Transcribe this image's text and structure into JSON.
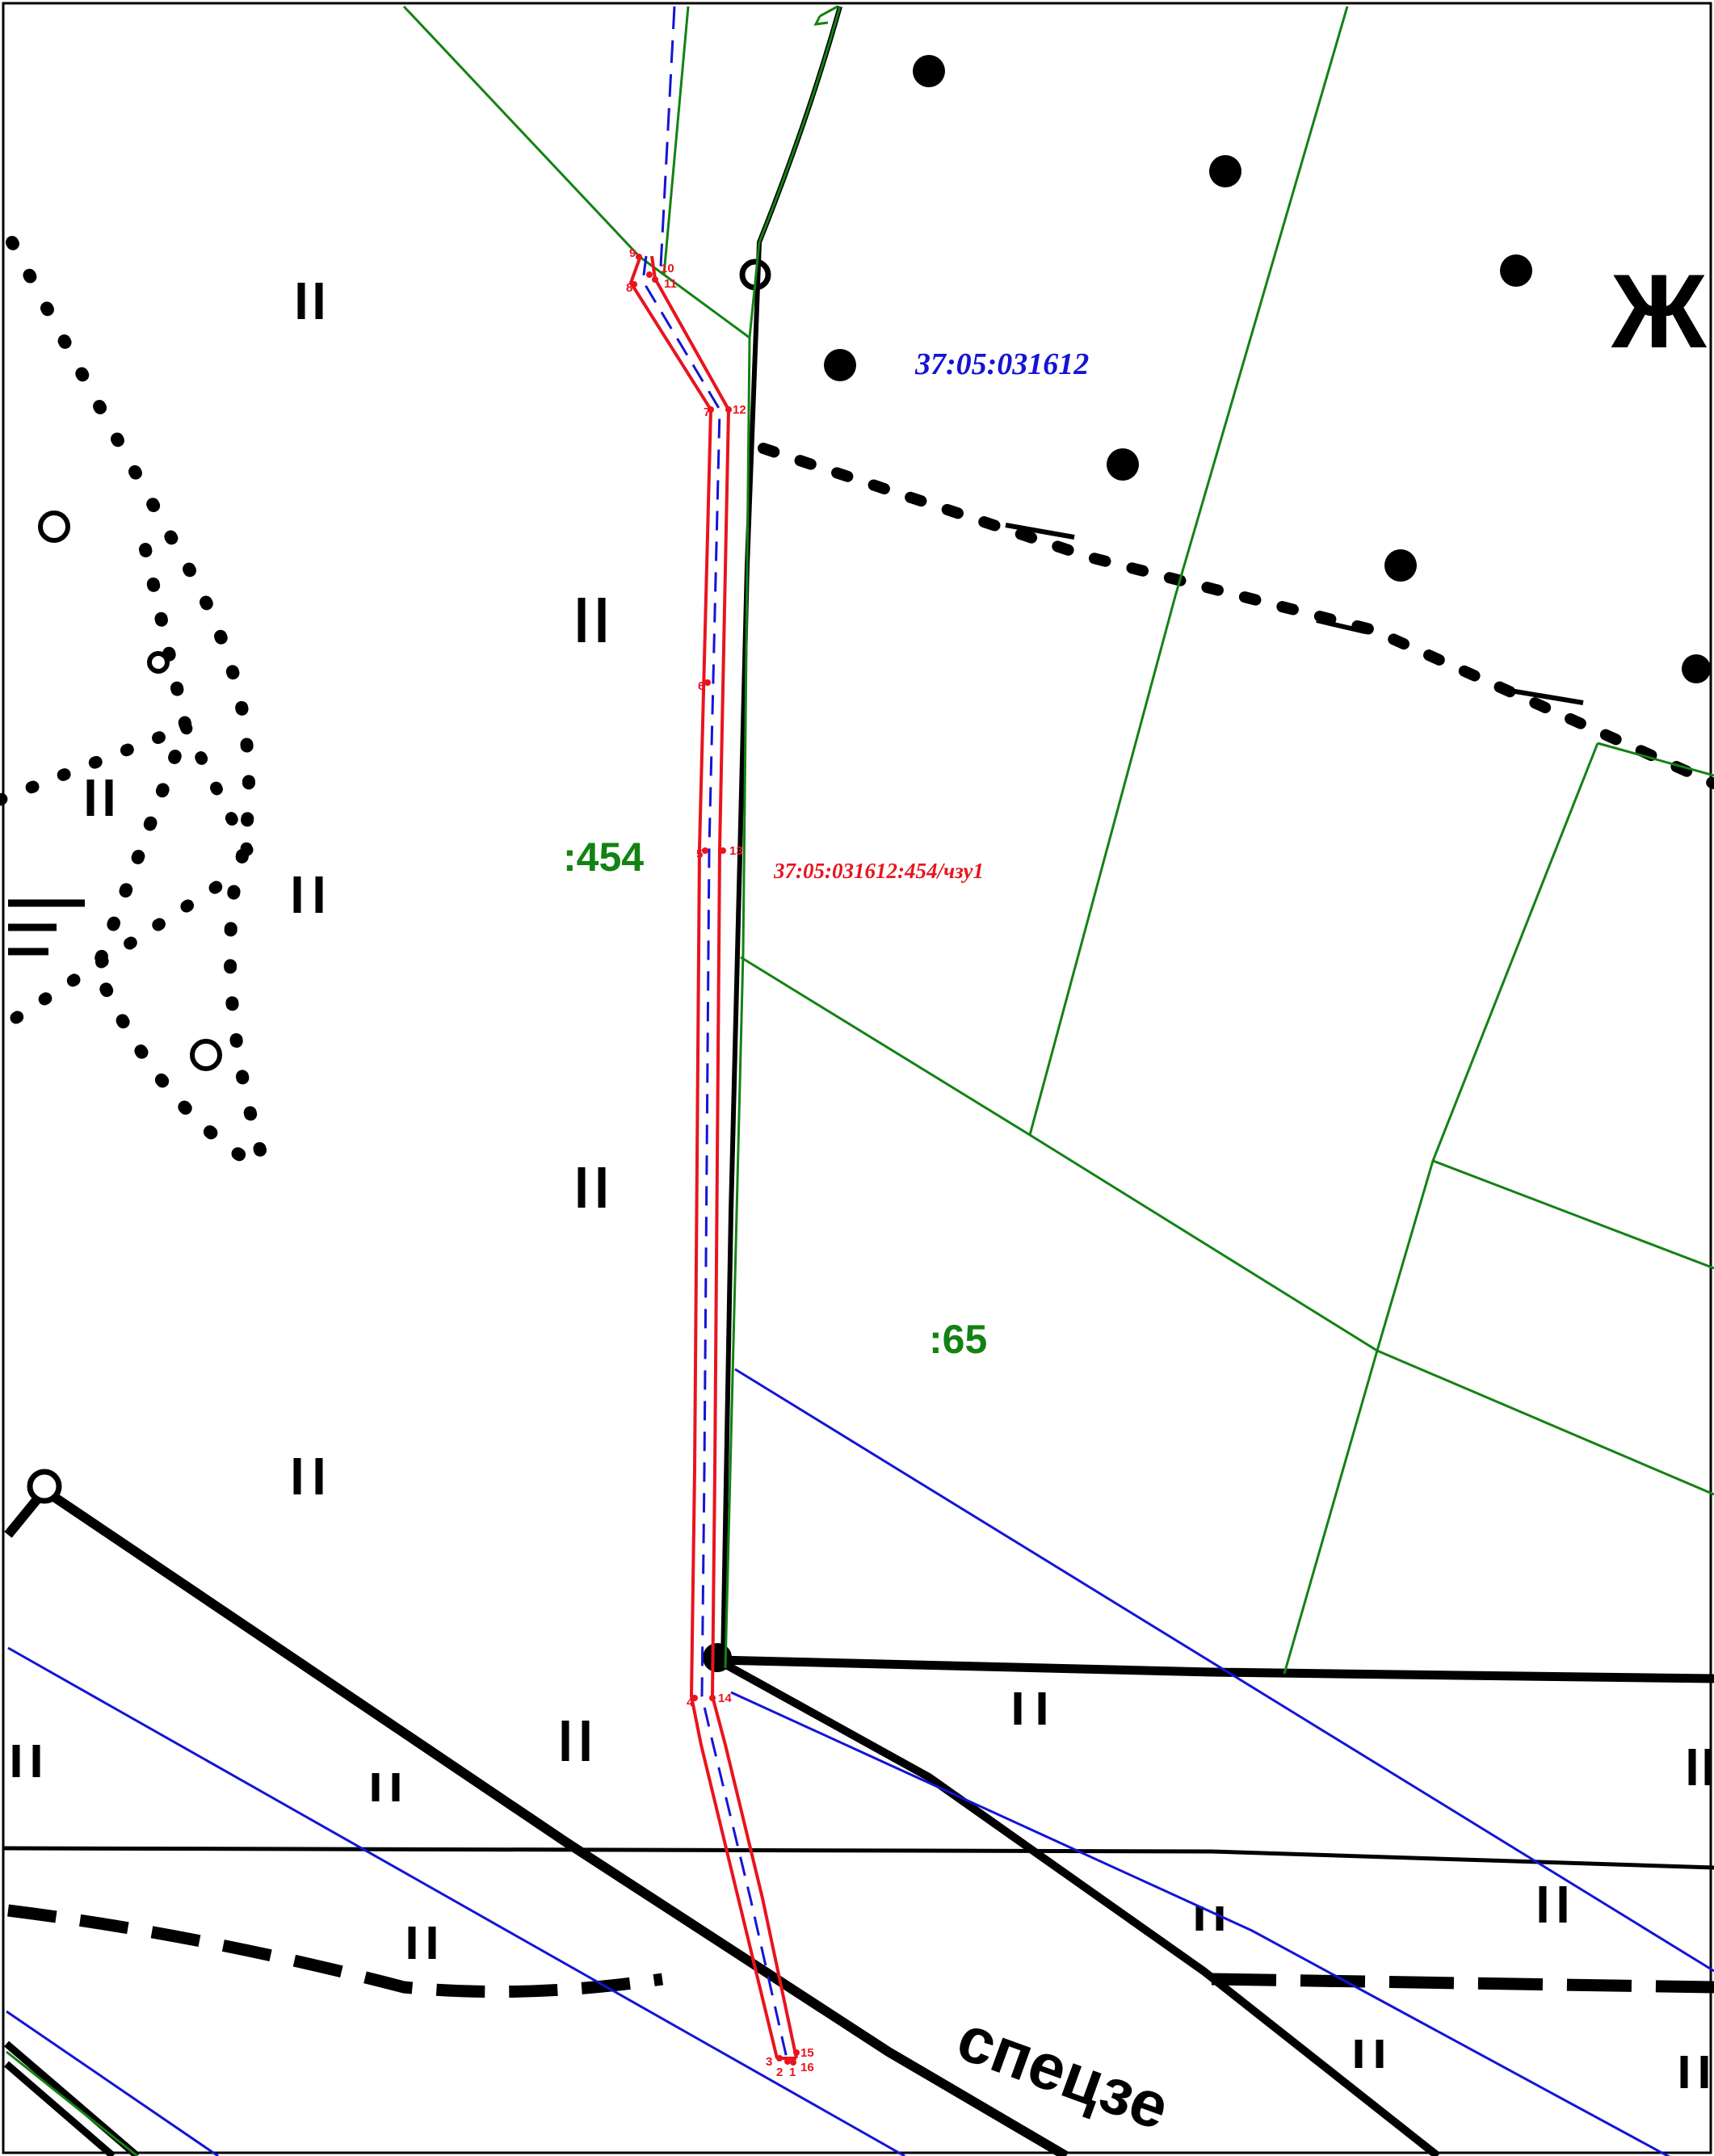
{
  "colors": {
    "parcel_boundary": "#138213",
    "quarter_boundary": "#1414d6",
    "easement": "#e8141e",
    "topography": "#000000"
  },
  "labels": {
    "quarter_number": "37:05:031612",
    "parcel_454": ":454",
    "parcel_65": ":65",
    "easement_id": "37:05:031612:454/чзу1",
    "road_text": "спецзе",
    "settlement_letter": "Ж",
    "grass_symbol": "II"
  },
  "easement_points": [
    "1",
    "2",
    "3",
    "4",
    "5",
    "6",
    "7",
    "8",
    "9",
    "10",
    "11",
    "12",
    "13",
    "14",
    "15",
    "16"
  ]
}
